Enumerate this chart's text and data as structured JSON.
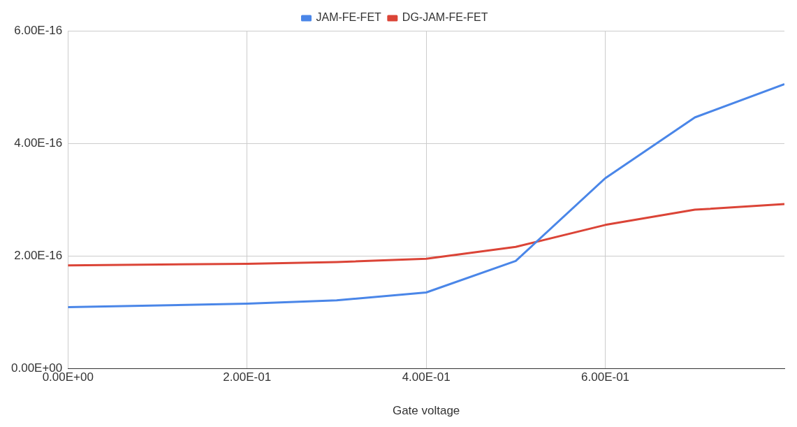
{
  "chart_data": {
    "type": "line",
    "xlabel": "Gate voltage",
    "x": [
      0,
      0.2,
      0.3,
      0.4,
      0.5,
      0.6,
      0.7,
      0.8
    ],
    "series": [
      {
        "name": "JAM-FE-FET",
        "color": "#4a86e8",
        "values": [
          1.09e-16,
          1.15e-16,
          1.21e-16,
          1.35e-16,
          1.91e-16,
          3.38e-16,
          4.46e-16,
          5.05e-16
        ]
      },
      {
        "name": "DG-JAM-FE-FET",
        "color": "#db4437",
        "values": [
          1.83e-16,
          1.86e-16,
          1.89e-16,
          1.95e-16,
          2.16e-16,
          2.55e-16,
          2.82e-16,
          2.92e-16
        ]
      }
    ],
    "xlim": [
      0,
      0.8
    ],
    "xticks": [
      {
        "value": 0,
        "label": "0.00E+00"
      },
      {
        "value": 0.2,
        "label": "2.00E-01"
      },
      {
        "value": 0.4,
        "label": "4.00E-01"
      },
      {
        "value": 0.6,
        "label": "6.00E-01"
      }
    ],
    "ylim": [
      0,
      6e-16
    ],
    "yticks": [
      {
        "value": 0,
        "label": "0.00E+00"
      },
      {
        "value": 2e-16,
        "label": "2.00E-16"
      },
      {
        "value": 4e-16,
        "label": "4.00E-16"
      },
      {
        "value": 6e-16,
        "label": "6.00E-16"
      }
    ],
    "grid": true,
    "legend": "top",
    "marker": "none",
    "line_style": "solid"
  }
}
